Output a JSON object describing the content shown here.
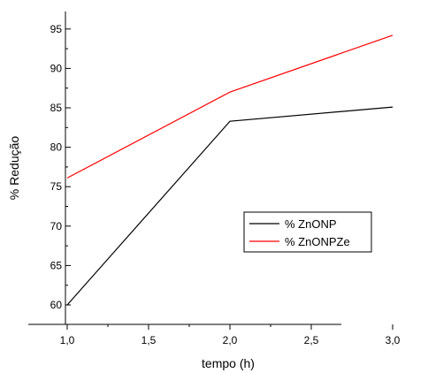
{
  "chart_data": {
    "type": "line",
    "title": "",
    "xlabel": "tempo (h)",
    "ylabel": "% Redução",
    "xlim": [
      0.8,
      3.3
    ],
    "ylim": [
      58.5,
      98
    ],
    "x_ticks": [
      1.0,
      1.5,
      2.0,
      2.5,
      3.0
    ],
    "x_tick_labels": [
      "1,0",
      "1,5",
      "2,0",
      "2,5",
      "3,0"
    ],
    "y_ticks": [
      60,
      65,
      70,
      75,
      80,
      85,
      90,
      95
    ],
    "y_tick_labels": [
      "60",
      "65",
      "70",
      "75",
      "80",
      "85",
      "90",
      "95"
    ],
    "grid": false,
    "legend_position": "center-right",
    "series": [
      {
        "name": "% ZnONP",
        "color": "#000000",
        "x": [
          1.0,
          2.0,
          3.0
        ],
        "y": [
          60.0,
          83.3,
          85.1
        ]
      },
      {
        "name": "% ZnONPZe",
        "color": "#ff0000",
        "x": [
          1.0,
          2.0,
          3.0
        ],
        "y": [
          76.1,
          87.0,
          94.2
        ]
      }
    ]
  }
}
